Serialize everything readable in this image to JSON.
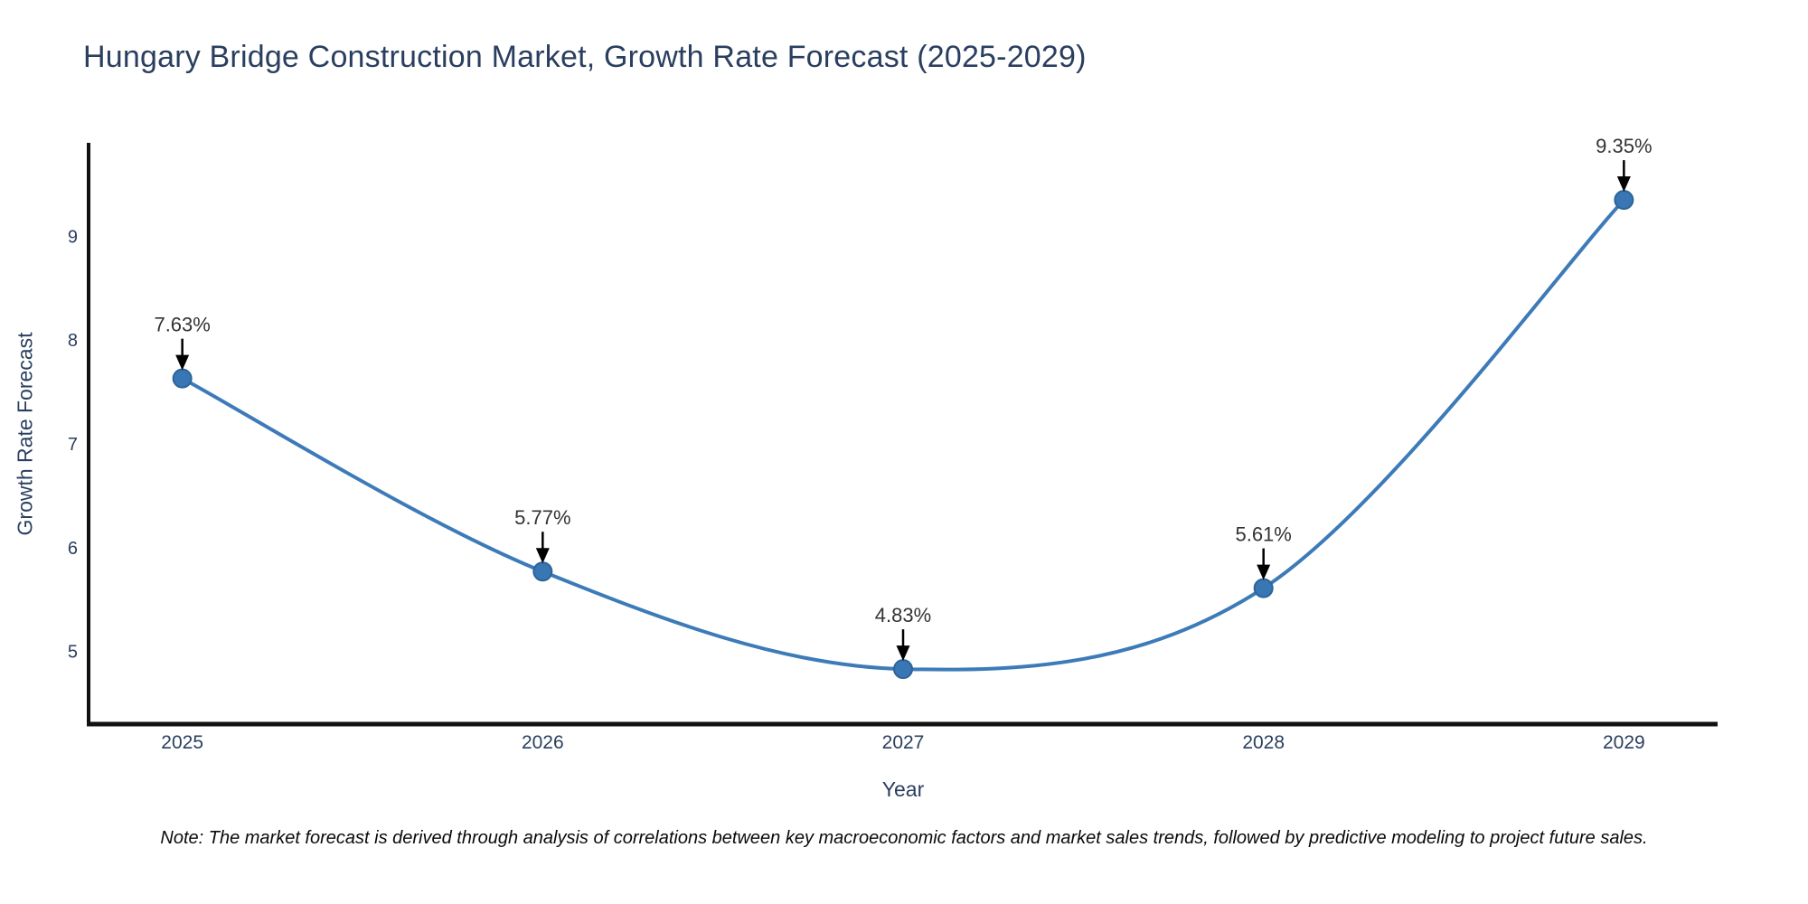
{
  "page": {
    "title": "Hungary Bridge Construction Market, Growth Rate Forecast (2025-2029)",
    "note": "Note: The market forecast is derived through analysis of correlations between key macroeconomic factors and market sales trends, followed by predictive modeling to project future sales."
  },
  "chart_data": {
    "type": "line",
    "title": "Hungary Bridge Construction Market, Growth Rate Forecast (2025-2029)",
    "xlabel": "Year",
    "ylabel": "Growth Rate Forecast",
    "x": [
      2025,
      2026,
      2027,
      2028,
      2029
    ],
    "y": [
      7.63,
      5.77,
      4.83,
      5.61,
      9.35
    ],
    "point_labels": [
      "7.63%",
      "5.77%",
      "4.83%",
      "5.61%",
      "9.35%"
    ],
    "xticks": [
      2025,
      2026,
      2027,
      2028,
      2029
    ],
    "yticks": [
      5,
      6,
      7,
      8,
      9
    ],
    "xlim": [
      2024.74,
      2029.26
    ],
    "ylim": [
      4.3,
      9.9
    ],
    "grid": false,
    "legend": false,
    "line_shape": "spline",
    "note": "Note: The market forecast is derived through analysis of correlations between key macroeconomic factors and market sales trends, followed by predictive modeling to project future sales.",
    "colors": {
      "line": "#3d7bb8",
      "marker_fill": "#3876b4",
      "marker_edge": "#2d6499",
      "axis": "#111111",
      "tick_text": "#2a3f5f",
      "annotation_text": "#333333",
      "arrow": "#000000"
    }
  }
}
